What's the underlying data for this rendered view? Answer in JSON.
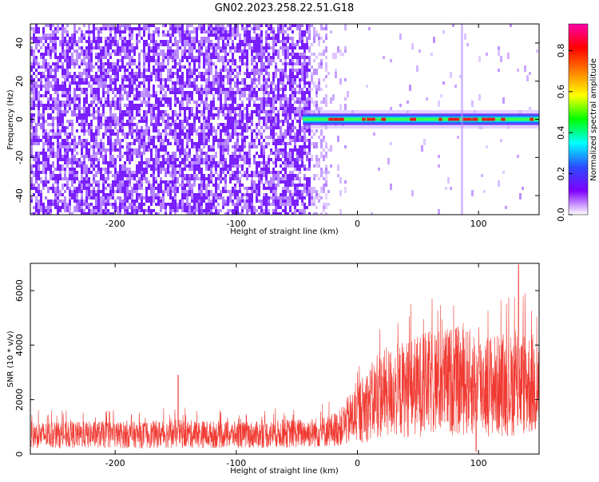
{
  "title": "GN02.2023.258.22.51.G18",
  "colors": {
    "snr_line": "#f03a32",
    "noise": "#7a1fff",
    "track_core": "#e81a1a",
    "track_mid": "#3cff50",
    "track_edge": "#1a6bff"
  },
  "chart_data": [
    {
      "type": "heatmap",
      "xlabel": "Height of straight line (km)",
      "ylabel": "Frequency (Hz)",
      "xlim": [
        -270,
        150
      ],
      "ylim": [
        -50,
        50
      ],
      "x_ticks": [
        -200,
        -100,
        0,
        100
      ],
      "x_tick_labels": [
        "-200",
        "-100",
        "0",
        "100"
      ],
      "y_ticks": [
        -40,
        -20,
        0,
        20,
        40
      ],
      "y_tick_labels": [
        "-40",
        "-20",
        "0",
        "20",
        "40"
      ],
      "colorbar": {
        "label": "Normalized spectral amplitude",
        "range": [
          0,
          0.93
        ],
        "ticks": [
          0.0,
          0.2,
          0.4,
          0.6,
          0.8
        ],
        "tick_labels": [
          "0.0",
          "0.2",
          "0.4",
          "0.6",
          "0.8"
        ],
        "colormap": [
          "#ffffff",
          "#8000ff",
          "#2a4bff",
          "#00ffff",
          "#00ff00",
          "#ffff00",
          "#ff8000",
          "#ff0000",
          "#ff00aa"
        ]
      },
      "features": {
        "noise_region_x": [
          -270,
          -40
        ],
        "signal_onset_x": -45,
        "signal_frequency_hz": 0,
        "signal_halfwidth_hz": 3,
        "spike_x": 86
      }
    },
    {
      "type": "line",
      "xlabel": "Height of straight line (km)",
      "ylabel": "SNR (10 * v/v)",
      "xlim": [
        -270,
        150
      ],
      "ylim": [
        0,
        7000
      ],
      "x_ticks": [
        -200,
        -100,
        0,
        100
      ],
      "x_tick_labels": [
        "-200",
        "-100",
        "0",
        "100"
      ],
      "y_ticks": [
        0,
        2000,
        4000,
        6000
      ],
      "y_tick_labels": [
        "0",
        "2000",
        "4000",
        "6000"
      ],
      "series": [
        {
          "x": [
            -270,
            -240,
            -210,
            -180,
            -150,
            -120,
            -90,
            -60,
            -30,
            -15,
            0,
            20,
            40,
            60,
            80,
            100,
            120,
            140,
            150
          ],
          "y": [
            700,
            700,
            720,
            700,
            750,
            720,
            700,
            750,
            800,
            950,
            1500,
            2200,
            2400,
            2600,
            2700,
            2600,
            2500,
            2600,
            2500
          ]
        }
      ],
      "features": {
        "spike": {
          "x": -148,
          "y": 2900
        },
        "max_peak": {
          "x": 133,
          "y": 6950
        },
        "dip": {
          "x": 98,
          "y": 100
        }
      }
    }
  ]
}
